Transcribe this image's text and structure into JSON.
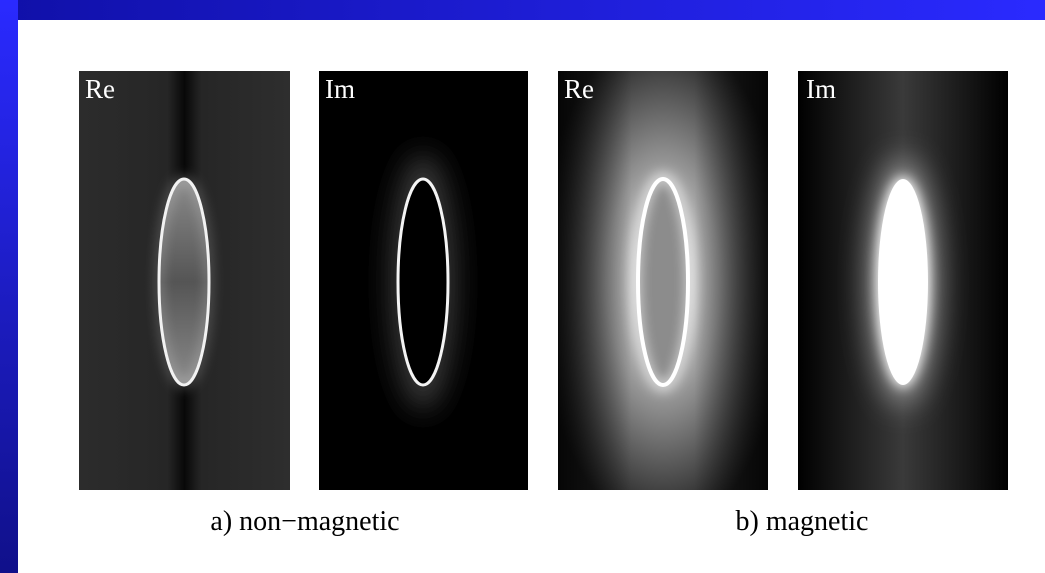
{
  "panels": [
    {
      "label": "Re"
    },
    {
      "label": "Im"
    },
    {
      "label": "Re"
    },
    {
      "label": "Im"
    }
  ],
  "captions": [
    "a) non−magnetic",
    "b) magnetic"
  ]
}
